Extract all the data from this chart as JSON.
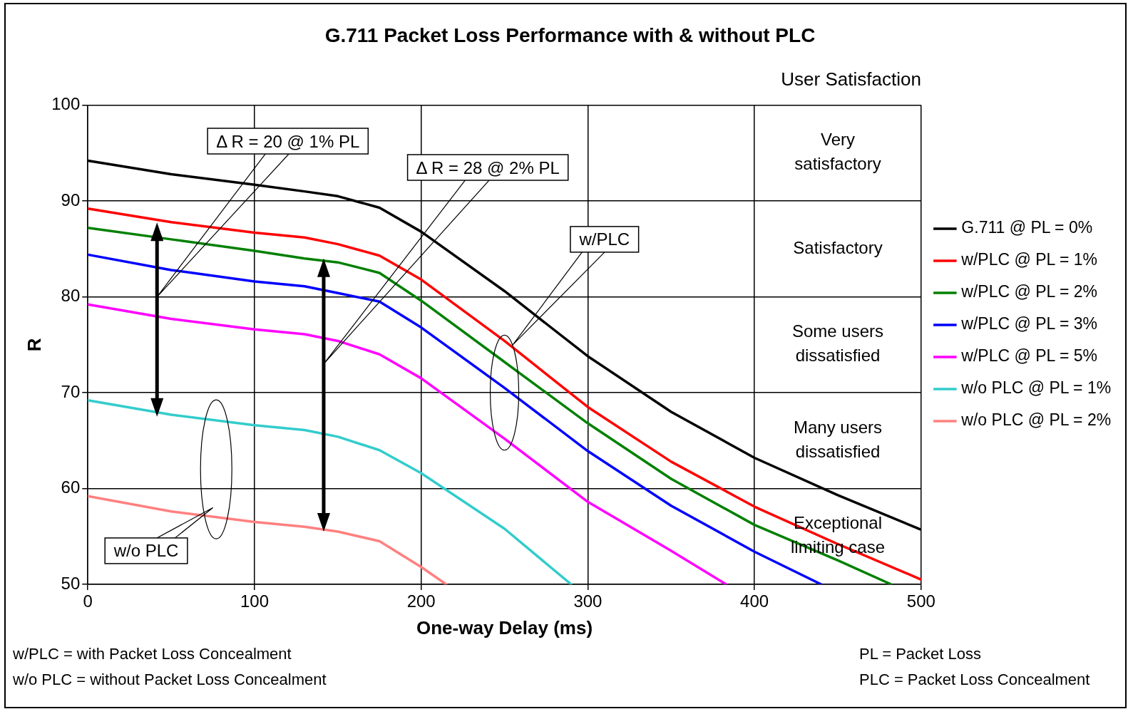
{
  "chart_data": {
    "type": "line",
    "title": "G.711 Packet Loss Performance with & without PLC",
    "xlabel": "One-way Delay (ms)",
    "ylabel": "R",
    "xlim": [
      0,
      500
    ],
    "xticks": [
      0,
      100,
      200,
      300,
      400,
      500
    ],
    "ylim": [
      50,
      100
    ],
    "yticks": [
      50,
      60,
      70,
      80,
      90,
      100
    ],
    "grid": true,
    "legend": "right",
    "marker": "none",
    "line_style": "solid",
    "series": [
      {
        "name": "G.711 @ PL = 0%",
        "color": "#000000",
        "x": [
          0,
          50,
          100,
          130,
          150,
          175,
          200,
          250,
          300,
          350,
          400,
          450,
          500
        ],
        "values": [
          94.2,
          92.8,
          91.7,
          91,
          90.5,
          89.3,
          86.8,
          80.6,
          73.8,
          68,
          63.2,
          59.3,
          55.7
        ]
      },
      {
        "name": "w/PLC @ PL = 1%",
        "color": "#ff0000",
        "x": [
          0,
          50,
          100,
          130,
          150,
          175,
          200,
          250,
          300,
          350,
          400,
          450,
          500
        ],
        "values": [
          89.2,
          87.8,
          86.7,
          86.2,
          85.5,
          84.3,
          81.8,
          75.4,
          68.5,
          62.8,
          58.1,
          54.2,
          50.5
        ]
      },
      {
        "name": "w/PLC @ PL = 2%",
        "color": "#008000",
        "x": [
          0,
          50,
          100,
          130,
          150,
          175,
          200,
          250,
          300,
          350,
          400,
          450,
          482
        ],
        "values": [
          87.2,
          86,
          84.8,
          84,
          83.6,
          82.5,
          79.6,
          73.2,
          66.8,
          61,
          56.2,
          52.5,
          50
        ]
      },
      {
        "name": "w/PLC @ PL = 3%",
        "color": "#0000ff",
        "x": [
          0,
          50,
          100,
          130,
          150,
          175,
          200,
          250,
          300,
          350,
          400,
          440
        ],
        "values": [
          84.4,
          82.8,
          81.6,
          81.1,
          80.4,
          79.5,
          76.8,
          70.5,
          63.9,
          58.2,
          53.4,
          50
        ]
      },
      {
        "name": "w/PLC @ PL = 5%",
        "color": "#ff00ff",
        "x": [
          0,
          50,
          100,
          130,
          150,
          175,
          200,
          250,
          300,
          350,
          383
        ],
        "values": [
          79.2,
          77.7,
          76.6,
          76.1,
          75.4,
          74,
          71.5,
          65.2,
          58.6,
          53.5,
          50
        ]
      },
      {
        "name": "w/o PLC @ PL = 1%",
        "color": "#33cccc",
        "x": [
          0,
          50,
          100,
          130,
          150,
          175,
          200,
          250,
          290
        ],
        "values": [
          69.2,
          67.7,
          66.6,
          66.1,
          65.4,
          64,
          61.6,
          55.8,
          50
        ]
      },
      {
        "name": "w/o PLC @ PL = 2%",
        "color": "#ff8080",
        "x": [
          0,
          50,
          100,
          130,
          150,
          175,
          200,
          215
        ],
        "values": [
          59.2,
          57.6,
          56.5,
          56,
          55.5,
          54.5,
          51.8,
          50
        ]
      }
    ],
    "annotations": [
      "User Satisfaction",
      "Very satisfactory",
      "Satisfactory",
      "Some users dissatisfied",
      "Many users dissatisfied",
      "Exceptional limiting case",
      "Δ R = 20 @ 1% PL",
      "Δ R = 28 @ 2% PL",
      "w/PLC",
      "w/o PLC",
      "w/PLC = with Packet Loss Concealment",
      "w/o PLC = without Packet Loss Concealment",
      "PL = Packet Loss",
      "PLC = Packet Loss Concealment"
    ]
  }
}
